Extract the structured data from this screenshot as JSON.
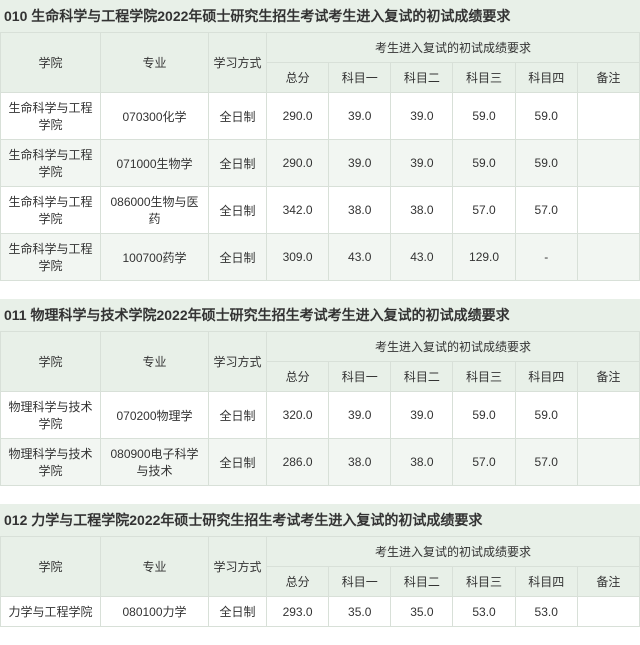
{
  "colors": {
    "header_bg": "#e8f0e8",
    "row_even_bg": "#f2f6f2",
    "row_odd_bg": "#ffffff",
    "border": "#d8e0d8",
    "text": "#333333"
  },
  "headers": {
    "college": "学院",
    "major": "专业",
    "mode": "学习方式",
    "req_span": "考生进入复试的初试成绩要求",
    "total": "总分",
    "s1": "科目一",
    "s2": "科目二",
    "s3": "科目三",
    "s4": "科目四",
    "remark": "备注"
  },
  "sections": [
    {
      "title": "010 生命科学与工程学院2022年硕士研究生招生考试考生进入复试的初试成绩要求",
      "rows": [
        {
          "college": "生命科学与工程学院",
          "major": "070300化学",
          "mode": "全日制",
          "total": "290.0",
          "s1": "39.0",
          "s2": "39.0",
          "s3": "59.0",
          "s4": "59.0",
          "remark": ""
        },
        {
          "college": "生命科学与工程学院",
          "major": "071000生物学",
          "mode": "全日制",
          "total": "290.0",
          "s1": "39.0",
          "s2": "39.0",
          "s3": "59.0",
          "s4": "59.0",
          "remark": ""
        },
        {
          "college": "生命科学与工程学院",
          "major": "086000生物与医药",
          "mode": "全日制",
          "total": "342.0",
          "s1": "38.0",
          "s2": "38.0",
          "s3": "57.0",
          "s4": "57.0",
          "remark": ""
        },
        {
          "college": "生命科学与工程学院",
          "major": "100700药学",
          "mode": "全日制",
          "total": "309.0",
          "s1": "43.0",
          "s2": "43.0",
          "s3": "129.0",
          "s4": "-",
          "remark": ""
        }
      ]
    },
    {
      "title": "011 物理科学与技术学院2022年硕士研究生招生考试考生进入复试的初试成绩要求",
      "rows": [
        {
          "college": "物理科学与技术学院",
          "major": "070200物理学",
          "mode": "全日制",
          "total": "320.0",
          "s1": "39.0",
          "s2": "39.0",
          "s3": "59.0",
          "s4": "59.0",
          "remark": ""
        },
        {
          "college": "物理科学与技术学院",
          "major": "080900电子科学与技术",
          "mode": "全日制",
          "total": "286.0",
          "s1": "38.0",
          "s2": "38.0",
          "s3": "57.0",
          "s4": "57.0",
          "remark": ""
        }
      ]
    },
    {
      "title": "012 力学与工程学院2022年硕士研究生招生考试考生进入复试的初试成绩要求",
      "rows": [
        {
          "college": "力学与工程学院",
          "major": "080100力学",
          "mode": "全日制",
          "total": "293.0",
          "s1": "35.0",
          "s2": "35.0",
          "s3": "53.0",
          "s4": "53.0",
          "remark": ""
        }
      ]
    }
  ]
}
